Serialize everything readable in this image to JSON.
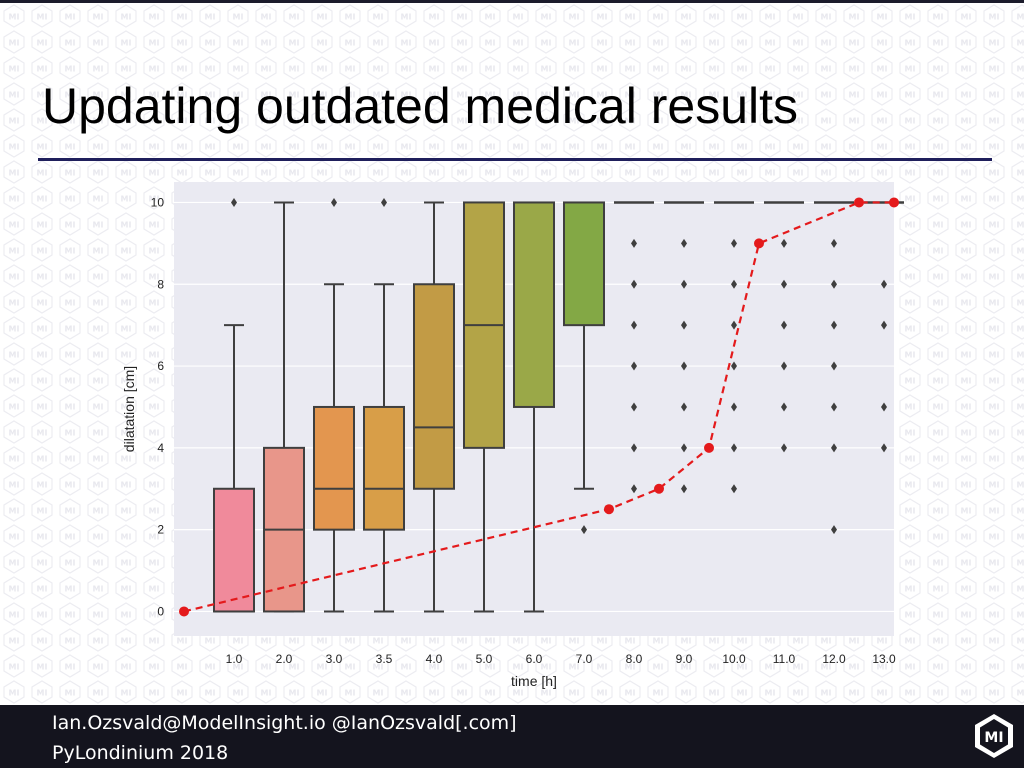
{
  "slide": {
    "title": "Updating outdated medical results",
    "watermark_text": "MI"
  },
  "footer": {
    "line1": "Ian.Ozsvald@ModelInsight.io @IanOzsvald[.com]",
    "line2": "PyLondinium 2018",
    "logo_text": "MI"
  },
  "chart_data": {
    "type": "box",
    "xlabel": "time [h]",
    "ylabel": "dilatation [cm]",
    "categories": [
      "1.0",
      "2.0",
      "3.0",
      "3.5",
      "4.0",
      "5.0",
      "6.0",
      "7.0",
      "8.0",
      "9.0",
      "10.0",
      "11.0",
      "12.0",
      "13.0"
    ],
    "ylim": [
      -0.6,
      10.5
    ],
    "y_ticks": [
      0,
      2,
      4,
      6,
      8,
      10
    ],
    "y_tick_labels": [
      "0",
      "2",
      "4",
      "6",
      "8",
      "10"
    ],
    "grid": true,
    "plot_background": "#eaeaf2",
    "boxes": [
      {
        "category": "1.0",
        "whisker_low": 0,
        "q1": 0,
        "median": 0,
        "q3": 3,
        "whisker_high": 7,
        "outliers": [
          10
        ],
        "color": "#f08a9b"
      },
      {
        "category": "2.0",
        "whisker_low": 0,
        "q1": 0,
        "median": 2,
        "q3": 4,
        "whisker_high": 10,
        "outliers": [],
        "color": "#e8968a"
      },
      {
        "category": "3.0",
        "whisker_low": 0,
        "q1": 2,
        "median": 3,
        "q3": 5,
        "whisker_high": 8,
        "outliers": [
          10
        ],
        "color": "#e3964f"
      },
      {
        "category": "3.5",
        "whisker_low": 0,
        "q1": 2,
        "median": 3,
        "q3": 5,
        "whisker_high": 8,
        "outliers": [
          10
        ],
        "color": "#d89e48"
      },
      {
        "category": "4.0",
        "whisker_low": 0,
        "q1": 3,
        "median": 4.5,
        "q3": 8,
        "whisker_high": 10,
        "outliers": [],
        "color": "#c29b45"
      },
      {
        "category": "5.0",
        "whisker_low": 0,
        "q1": 4,
        "median": 7,
        "q3": 10,
        "whisker_high": 10,
        "outliers": [],
        "color": "#b3a447"
      },
      {
        "category": "6.0",
        "whisker_low": 0,
        "q1": 5,
        "median": 10,
        "q3": 10,
        "whisker_high": 10,
        "outliers": [],
        "color": "#9aa848"
      },
      {
        "category": "7.0",
        "whisker_low": 3,
        "q1": 7,
        "median": 10,
        "q3": 10,
        "whisker_high": 10,
        "outliers": [
          2
        ],
        "color": "#83a845"
      },
      {
        "category": "8.0",
        "whisker_low": 10,
        "q1": 10,
        "median": 10,
        "q3": 10,
        "whisker_high": 10,
        "outliers": [
          9,
          8,
          7,
          6,
          5,
          4,
          3
        ],
        "color": "#6aa849"
      },
      {
        "category": "9.0",
        "whisker_low": 10,
        "q1": 10,
        "median": 10,
        "q3": 10,
        "whisker_high": 10,
        "outliers": [
          9,
          8,
          7,
          6,
          5,
          4,
          3
        ],
        "color": "#4fa85a"
      },
      {
        "category": "10.0",
        "whisker_low": 10,
        "q1": 10,
        "median": 10,
        "q3": 10,
        "whisker_high": 10,
        "outliers": [
          9,
          8,
          7,
          6,
          5,
          4,
          3
        ],
        "color": "#48a874"
      },
      {
        "category": "11.0",
        "whisker_low": 10,
        "q1": 10,
        "median": 10,
        "q3": 10,
        "whisker_high": 10,
        "outliers": [
          9,
          8,
          7,
          6,
          5,
          4
        ],
        "color": "#4aa88c"
      },
      {
        "category": "12.0",
        "whisker_low": 10,
        "q1": 10,
        "median": 10,
        "q3": 10,
        "whisker_high": 10,
        "outliers": [
          9,
          8,
          7,
          6,
          5,
          4,
          2
        ],
        "color": "#4ba59f"
      },
      {
        "category": "13.0",
        "whisker_low": 10,
        "q1": 10,
        "median": 10,
        "q3": 10,
        "whisker_high": 10,
        "outliers": [
          8,
          7,
          5,
          4
        ],
        "color": "#4ca2b0"
      }
    ],
    "overlay_line": {
      "color": "#e41a1c",
      "dashed": true,
      "x_positions": [
        -1.0,
        7.5,
        8.5,
        9.5,
        10.5,
        12.5,
        13.2
      ],
      "values": [
        0,
        2.5,
        3,
        4,
        9,
        10,
        10
      ]
    }
  }
}
